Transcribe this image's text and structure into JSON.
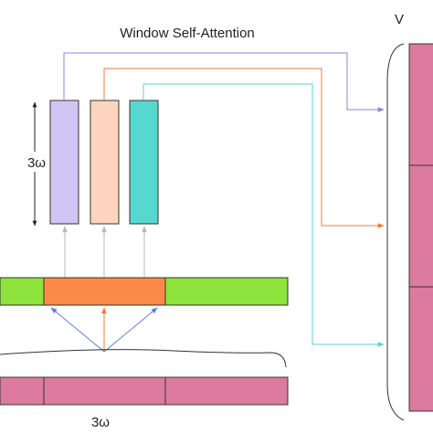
{
  "title": "Window Self-Attention",
  "height_label": "3ω",
  "width_label": "3ω",
  "right_label": "V",
  "colors": {
    "q_bar": "#cfc6f4",
    "k_bar": "#fdd5bf",
    "v_bar": "#55d8cf",
    "green_block": "#8ee33c",
    "orange_block": "#fb8a46",
    "pink_block": "#dc7b9d",
    "line_purple": "#8a86e0",
    "line_orange": "#f07b3c",
    "line_cyan": "#5ecfd6",
    "line_gray": "#b8b8b8",
    "line_blue": "#5f7fdb",
    "outline": "#333333"
  }
}
